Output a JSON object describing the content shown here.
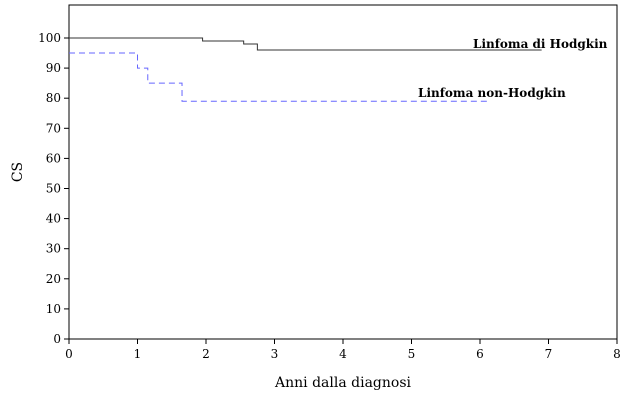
{
  "chart_data": {
    "type": "line",
    "step": true,
    "title": "",
    "xlabel": "Anni dalla diagnosi",
    "ylabel": "CS",
    "xlim": [
      0,
      8
    ],
    "ylim": [
      0,
      100
    ],
    "xticks": [
      "0",
      "1",
      "2",
      "3",
      "4",
      "5",
      "6",
      "7",
      "8"
    ],
    "yticks": [
      "0",
      "10",
      "20",
      "30",
      "40",
      "50",
      "60",
      "70",
      "80",
      "90",
      "100"
    ],
    "grid": false,
    "legend": "none",
    "series": [
      {
        "name": "Linfoma di Hodgkin",
        "color": "#333333",
        "style": "solid",
        "x": [
          0,
          1.95,
          2.55,
          2.75,
          6.9
        ],
        "y": [
          100,
          99,
          98,
          96,
          96
        ]
      },
      {
        "name": "Linfoma non-Hodgkin",
        "color": "#6666ff",
        "style": "dashed",
        "x": [
          0,
          1.0,
          1.15,
          1.65,
          6.15
        ],
        "y": [
          95,
          90,
          85,
          79,
          79
        ]
      }
    ]
  }
}
